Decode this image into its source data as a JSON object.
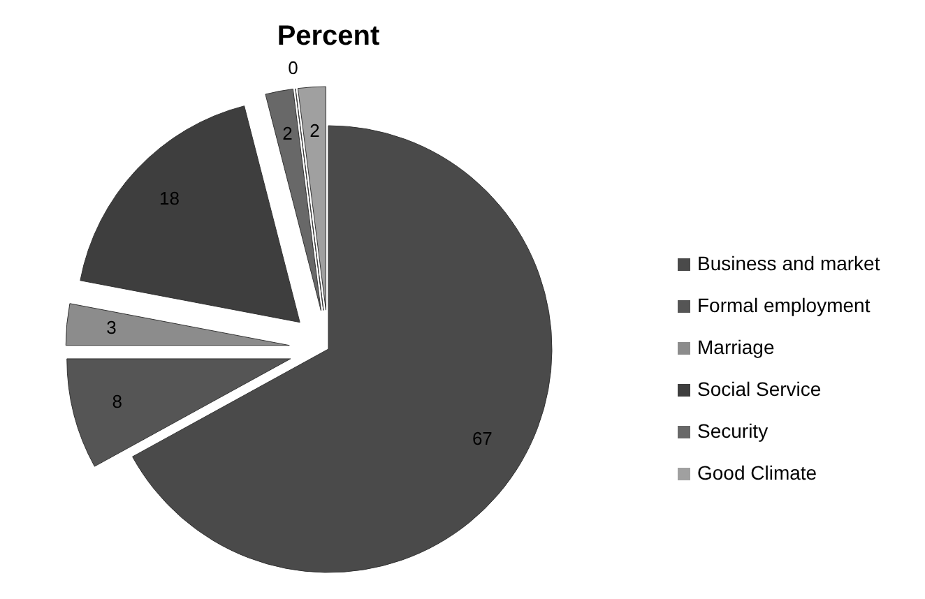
{
  "chart_data": {
    "type": "pie",
    "title": "Percent",
    "categories": [
      "Business and market",
      "Formal employment",
      "Marriage",
      "Social Service",
      "Security",
      null,
      "Good Climate"
    ],
    "values": [
      67,
      8,
      3,
      18,
      2,
      0,
      2
    ],
    "colors": [
      "#4a4a4a",
      "#555555",
      "#8c8c8c",
      "#3e3e3e",
      "#686868",
      "#7a7a7a",
      "#a0a0a0"
    ],
    "value_labels": [
      "67",
      "8",
      "3",
      "18",
      "2",
      "0",
      "2"
    ],
    "legend": "right"
  }
}
